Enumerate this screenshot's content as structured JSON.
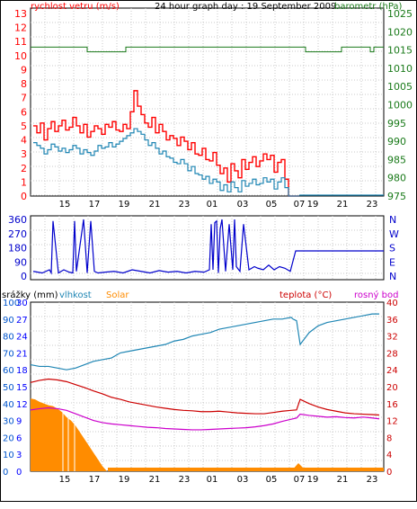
{
  "chart_data": [
    {
      "type": "line",
      "title": "24 hour graph day : 19 September 2009",
      "ylabel_left": "rychlost vetru (m/s)",
      "ylabel_right": "barometr (hPa)",
      "x_ticks": [
        "15",
        "17",
        "19",
        "21",
        "23",
        "01",
        "03",
        "05",
        "07",
        "19",
        "21",
        "23"
      ],
      "y_left_ticks": [
        "13",
        "12",
        "11",
        "10",
        "9",
        "8",
        "7",
        "6",
        "5",
        "4",
        "3",
        "2",
        "1",
        "0"
      ],
      "y_right_ticks": [
        "1025",
        "1020",
        "1015",
        "1010",
        "1005",
        "1000",
        "995",
        "990",
        "985",
        "980",
        "975"
      ],
      "ylim_left": [
        0,
        13
      ],
      "ylim_right": [
        975,
        1025
      ],
      "colors": {
        "gust": "#ff0000",
        "wind": "#1f86b4",
        "pressure": "#1a7a1a",
        "text_left": "#ff0000",
        "text_right": "#1a7a1a"
      },
      "series": [
        {
          "key": "gust",
          "x": [
            0,
            4,
            8,
            12,
            16,
            20,
            24,
            28,
            32,
            36,
            40,
            44,
            48,
            52,
            56,
            60,
            64,
            68,
            72,
            76,
            80,
            84,
            88,
            92,
            96,
            100,
            104,
            108,
            112,
            116,
            120,
            124,
            128,
            132,
            136,
            140,
            144,
            148,
            152,
            156,
            160,
            164,
            168,
            172,
            176,
            180,
            184,
            188,
            192,
            196,
            200,
            204,
            208,
            212,
            216,
            220,
            224,
            228,
            232,
            236,
            240,
            244,
            248,
            252,
            256,
            260,
            264,
            268,
            272,
            276,
            280,
            284,
            288,
            292,
            296
          ],
          "values": [
            5.0,
            4.5,
            5.2,
            4.0,
            4.8,
            5.3,
            4.6,
            5.0,
            5.4,
            4.7,
            4.9,
            5.6,
            5.0,
            4.5,
            5.1,
            4.2,
            4.6,
            5.0,
            4.8,
            4.4,
            5.1,
            4.9,
            5.3,
            4.7,
            4.6,
            5.1,
            4.8,
            6.0,
            7.5,
            6.4,
            5.8,
            5.2,
            4.9,
            5.6,
            4.5,
            5.1,
            4.6,
            4.0,
            4.3,
            4.1,
            3.6,
            4.2,
            3.9,
            3.3,
            3.8,
            3.0,
            2.9,
            3.4,
            2.6,
            2.5,
            3.1,
            2.2,
            1.6,
            2.0,
            1.0,
            2.3,
            1.8,
            1.3,
            2.6,
            1.9,
            2.4,
            2.8,
            2.1,
            2.5,
            3.0,
            2.6,
            2.9,
            1.7,
            2.4,
            2.6,
            1.2,
            0,
            0,
            0,
            0
          ]
        },
        {
          "key": "wind",
          "x": [
            0,
            4,
            8,
            12,
            16,
            20,
            24,
            28,
            32,
            36,
            40,
            44,
            48,
            52,
            56,
            60,
            64,
            68,
            72,
            76,
            80,
            84,
            88,
            92,
            96,
            100,
            104,
            108,
            112,
            116,
            120,
            124,
            128,
            132,
            136,
            140,
            144,
            148,
            152,
            156,
            160,
            164,
            168,
            172,
            176,
            180,
            184,
            188,
            192,
            196,
            200,
            204,
            208,
            212,
            216,
            220,
            224,
            228,
            232,
            236,
            240,
            244,
            248,
            252,
            256,
            260,
            264,
            268,
            272,
            276,
            280,
            284,
            288,
            292,
            296
          ],
          "values": [
            3.8,
            3.6,
            3.4,
            3.0,
            3.3,
            3.7,
            3.5,
            3.2,
            3.4,
            3.1,
            3.3,
            3.6,
            3.4,
            3.0,
            3.3,
            3.1,
            2.9,
            3.2,
            3.6,
            3.4,
            3.5,
            3.8,
            3.5,
            3.7,
            3.9,
            4.1,
            4.3,
            4.5,
            4.8,
            4.6,
            4.4,
            4.0,
            3.6,
            3.8,
            3.4,
            3.0,
            3.2,
            2.8,
            2.7,
            2.4,
            2.3,
            2.6,
            2.3,
            1.8,
            2.1,
            1.6,
            1.5,
            1.2,
            1.4,
            0.9,
            1.2,
            1.0,
            0.4,
            0.8,
            0.3,
            1.0,
            0.6,
            0.3,
            1.1,
            0.7,
            0.9,
            1.2,
            0.8,
            0.9,
            1.3,
            1.0,
            1.2,
            0.5,
            1.0,
            1.3,
            0.6,
            0,
            0,
            0,
            0
          ]
        },
        {
          "key": "pressure",
          "x": [
            0,
            40,
            80,
            120,
            140,
            200,
            250,
            296
          ],
          "values": [
            1016,
            1016,
            1016,
            1016,
            1016,
            1016,
            1016,
            1016
          ]
        }
      ]
    },
    {
      "type": "line",
      "y_left_ticks": [
        "360",
        "270",
        "180",
        "90",
        "0"
      ],
      "y_right_ticks": [
        "N",
        "W",
        "S",
        "E",
        "N"
      ],
      "ylim": [
        0,
        360
      ],
      "colors": {
        "line": "#0000cc",
        "text": "#0000cc"
      },
      "series": [
        {
          "key": "direction",
          "x": [
            0,
            10,
            18,
            20,
            22,
            28,
            34,
            40,
            44,
            46,
            48,
            56,
            60,
            64,
            68,
            72,
            80,
            90,
            100,
            110,
            120,
            130,
            140,
            150,
            160,
            170,
            180,
            190,
            196,
            198,
            200,
            202,
            204,
            206,
            208,
            210,
            214,
            218,
            222,
            224,
            226,
            230,
            234,
            240,
            246,
            250,
            256,
            262,
            268,
            274,
            280,
            286,
            292,
            296
          ],
          "values": [
            30,
            20,
            40,
            20,
            350,
            20,
            40,
            25,
            20,
            350,
            30,
            360,
            20,
            350,
            30,
            20,
            25,
            30,
            20,
            40,
            30,
            20,
            35,
            25,
            30,
            20,
            30,
            25,
            40,
            330,
            40,
            340,
            350,
            20,
            300,
            360,
            30,
            330,
            40,
            360,
            60,
            30,
            330,
            40,
            60,
            50,
            40,
            70,
            40,
            60,
            50,
            30,
            160,
            160
          ]
        }
      ]
    },
    {
      "type": "line",
      "legend": [
        "srážky (mm)",
        "vlhkost",
        "Solar",
        "teplota (°C)",
        "rosný bod"
      ],
      "y_hum_ticks": [
        "100",
        "90",
        "80",
        "70",
        "60",
        "50",
        "40",
        "30",
        "20",
        "10",
        "0"
      ],
      "y_rain_ticks": [
        "30",
        "27",
        "24",
        "21",
        "18",
        "15",
        "12",
        "9",
        "6",
        "3",
        "0"
      ],
      "y_solar_ticks": [
        "1000",
        "900",
        "800",
        "700",
        "600",
        "500",
        "400",
        "300",
        "200",
        "100",
        "0"
      ],
      "y_temp_ticks": [
        "40",
        "36",
        "32",
        "28",
        "24",
        "20",
        "16",
        "12",
        "8",
        "4",
        "0"
      ],
      "ylim_humidity": [
        0,
        100
      ],
      "ylim_temperature": [
        0,
        40
      ],
      "ylim_solar": [
        0,
        1000
      ],
      "colors": {
        "rain": "#0000ff",
        "humidity": "#1f86b4",
        "solar": "#ff8c00",
        "temperature": "#cc0000",
        "dewpoint": "#cc00cc"
      },
      "series": [
        {
          "key": "humidity",
          "x": [
            0,
            10,
            20,
            30,
            40,
            50,
            60,
            70,
            80,
            90,
            100,
            110,
            120,
            130,
            140,
            150,
            160,
            170,
            180,
            190,
            200,
            210,
            220,
            230,
            240,
            250,
            260,
            270,
            280,
            290,
            292,
            296,
            300,
            310,
            320,
            330,
            340,
            350,
            360,
            370,
            380,
            388
          ],
          "values": [
            63,
            62,
            62,
            61,
            60,
            61,
            63,
            65,
            66,
            67,
            70,
            71,
            72,
            73,
            74,
            75,
            77,
            78,
            80,
            81,
            82,
            84,
            85,
            86,
            87,
            88,
            89,
            90,
            90,
            91,
            90,
            89,
            75,
            82,
            86,
            88,
            89,
            90,
            91,
            92,
            93,
            93
          ]
        },
        {
          "key": "temperature",
          "x": [
            0,
            10,
            20,
            30,
            40,
            50,
            60,
            70,
            80,
            90,
            100,
            110,
            120,
            130,
            140,
            150,
            160,
            170,
            180,
            190,
            200,
            210,
            220,
            230,
            240,
            250,
            260,
            270,
            280,
            290,
            296,
            300,
            310,
            320,
            330,
            340,
            350,
            360,
            370,
            380,
            388
          ],
          "values": [
            21.0,
            21.5,
            21.8,
            21.6,
            21.2,
            20.5,
            19.8,
            19.0,
            18.3,
            17.5,
            17.0,
            16.4,
            16.0,
            15.6,
            15.2,
            14.9,
            14.6,
            14.4,
            14.3,
            14.1,
            14.1,
            14.2,
            14.0,
            13.8,
            13.7,
            13.6,
            13.6,
            13.9,
            14.2,
            14.4,
            14.5,
            17.0,
            16.0,
            15.2,
            14.6,
            14.2,
            13.8,
            13.6,
            13.5,
            13.4,
            13.3
          ]
        },
        {
          "key": "dewpoint",
          "x": [
            0,
            10,
            20,
            30,
            40,
            50,
            60,
            70,
            80,
            90,
            100,
            110,
            120,
            130,
            140,
            150,
            160,
            170,
            180,
            190,
            200,
            210,
            220,
            230,
            240,
            250,
            260,
            270,
            280,
            290,
            296,
            300,
            310,
            320,
            330,
            340,
            350,
            360,
            370,
            380,
            388
          ],
          "values": [
            14.5,
            14.8,
            15.0,
            14.8,
            14.4,
            13.6,
            12.8,
            12.0,
            11.5,
            11.2,
            11.0,
            10.8,
            10.6,
            10.4,
            10.3,
            10.1,
            10.0,
            9.9,
            9.8,
            9.8,
            9.9,
            10.0,
            10.1,
            10.2,
            10.3,
            10.5,
            10.8,
            11.2,
            11.8,
            12.3,
            12.6,
            13.5,
            13.2,
            13.0,
            12.8,
            12.9,
            12.7,
            12.6,
            12.8,
            12.6,
            12.4
          ]
        },
        {
          "key": "solar",
          "x": [
            0,
            5,
            10,
            15,
            20,
            25,
            30,
            35,
            40,
            45,
            50,
            55,
            60,
            65,
            70,
            75,
            80,
            85,
            90,
            388
          ],
          "values": [
            430,
            425,
            410,
            400,
            390,
            385,
            370,
            350,
            320,
            300,
            270,
            230,
            190,
            150,
            110,
            70,
            30,
            0,
            0,
            0
          ]
        }
      ]
    }
  ]
}
